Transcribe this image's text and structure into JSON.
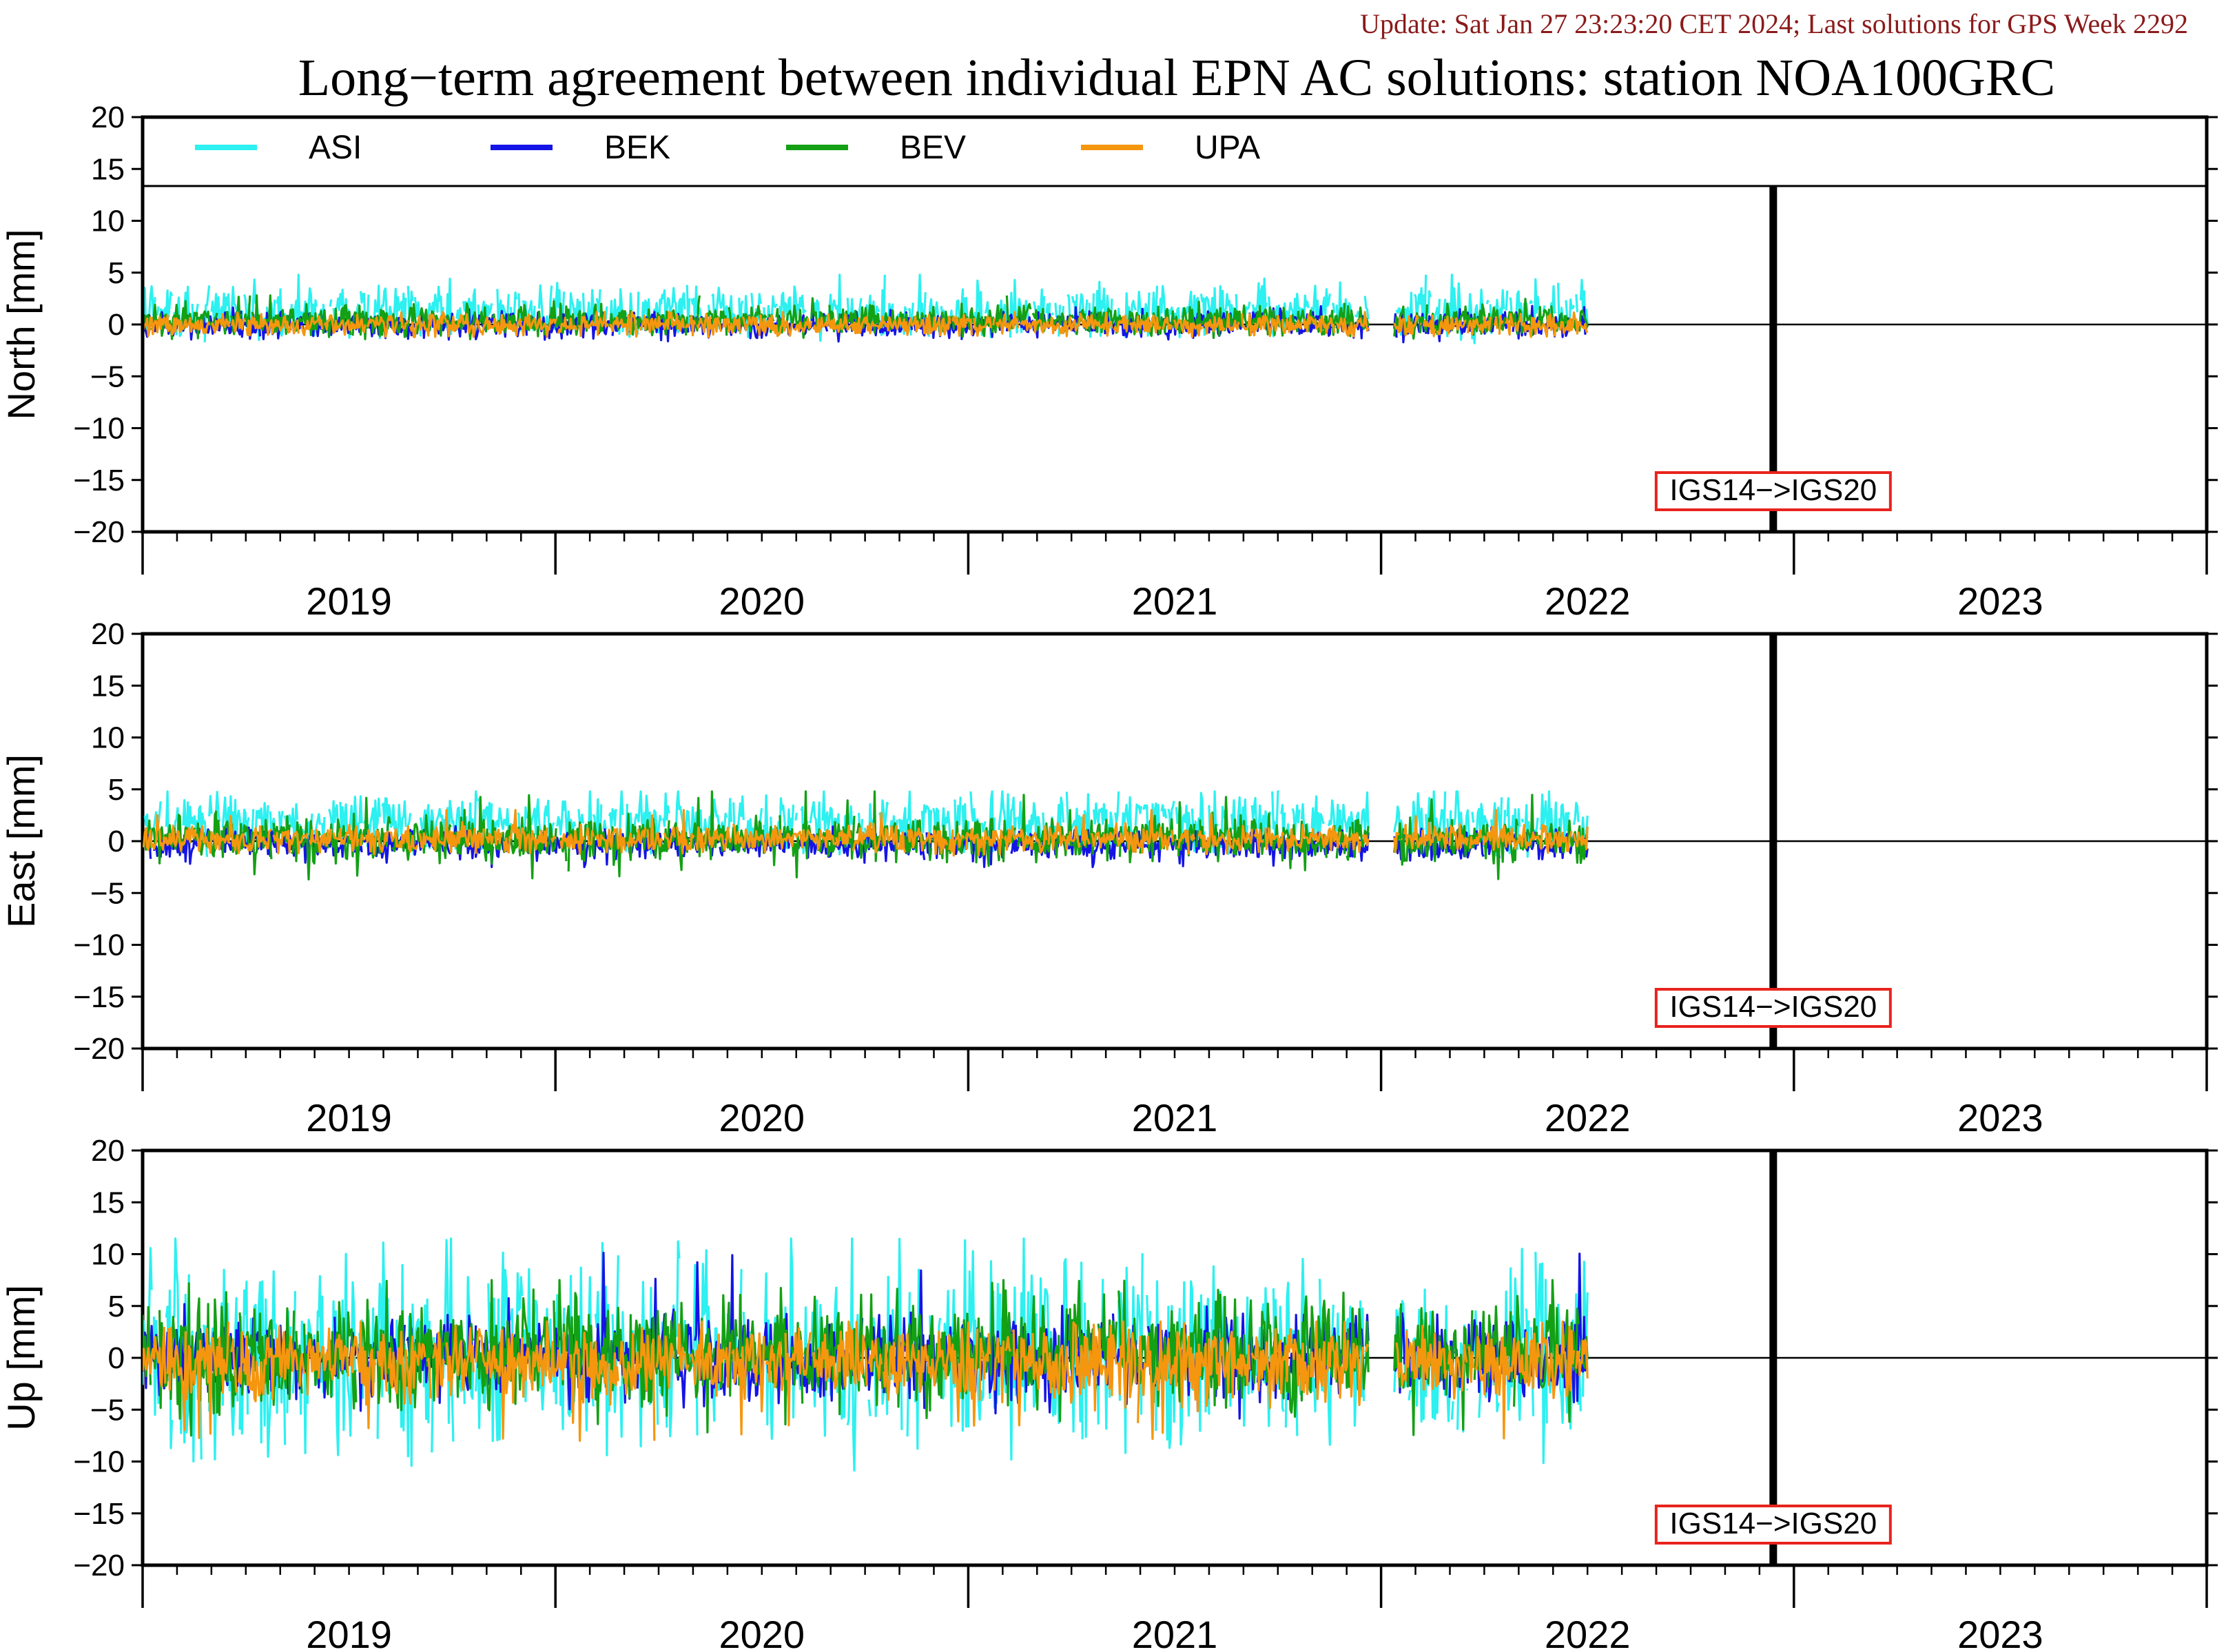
{
  "header": {
    "update_text": "Update: Sat Jan 27 23:23:20 CET 2024; Last solutions for GPS Week 2292",
    "title": "Long−term agreement between individual EPN AC solutions: station NOA100GRC"
  },
  "colors": {
    "update_text": "#8b1a1a",
    "axes": "#000000",
    "marker_box": "#e8231c",
    "ASI": "#2df0f0",
    "BEK": "#1414e6",
    "BEV": "#14a014",
    "UPA": "#f5960f"
  },
  "legend": {
    "placement": "top",
    "items": [
      {
        "name": "ASI",
        "color": "#2df0f0"
      },
      {
        "name": "BEK",
        "color": "#1414e6"
      },
      {
        "name": "BEV",
        "color": "#14a014"
      },
      {
        "name": "UPA",
        "color": "#f5960f"
      }
    ]
  },
  "frame_change": {
    "label": "IGS14−>IGS20",
    "date": 2022.45
  },
  "chart_data": [
    {
      "type": "line",
      "panel": "north",
      "ylabel": "North [mm]",
      "ylim": [
        -20,
        20
      ],
      "xlim": [
        2018.5,
        2023.5
      ],
      "yticks": [
        -20,
        -15,
        -10,
        -5,
        0,
        5,
        10,
        15,
        20
      ],
      "xtick_labels": [
        "2019",
        "2020",
        "2021",
        "2022",
        "2023"
      ],
      "zero_line": true,
      "data_end": 2022.0,
      "data_gap": [
        2021.47,
        2021.53
      ],
      "series": [
        {
          "name": "ASI",
          "mean": 1.3,
          "spread": 1.2,
          "spikes_up": 4.8,
          "spikes_down": -2.8
        },
        {
          "name": "BEK",
          "mean": 0.0,
          "spread": 0.6,
          "spikes_up": 1.8,
          "spikes_down": -1.8
        },
        {
          "name": "BEV",
          "mean": 0.4,
          "spread": 0.7,
          "spikes_up": 2.8,
          "spikes_down": -1.8
        },
        {
          "name": "UPA",
          "mean": 0.0,
          "spread": 0.5,
          "spikes_up": 1.2,
          "spikes_down": -1.2
        }
      ]
    },
    {
      "type": "line",
      "panel": "east",
      "ylabel": "East [mm]",
      "ylim": [
        -20,
        20
      ],
      "xlim": [
        2018.5,
        2023.5
      ],
      "yticks": [
        -20,
        -15,
        -10,
        -5,
        0,
        5,
        10,
        15,
        20
      ],
      "xtick_labels": [
        "2019",
        "2020",
        "2021",
        "2022",
        "2023"
      ],
      "zero_line": true,
      "data_end": 2022.0,
      "data_gap": [
        2021.47,
        2021.53
      ],
      "series": [
        {
          "name": "ASI",
          "mean": 1.8,
          "spread": 1.3,
          "spikes_up": 4.8,
          "spikes_down": -3.0
        },
        {
          "name": "BEK",
          "mean": -0.3,
          "spread": 0.7,
          "spikes_up": 1.5,
          "spikes_down": -2.5
        },
        {
          "name": "BEV",
          "mean": 0.2,
          "spread": 1.0,
          "spikes_up": 4.8,
          "spikes_down": -4.0
        },
        {
          "name": "UPA",
          "mean": 0.2,
          "spread": 0.6,
          "spikes_up": 3.0,
          "spikes_down": -1.5
        }
      ]
    },
    {
      "type": "line",
      "panel": "up",
      "ylabel": "Up [mm]",
      "ylim": [
        -20,
        20
      ],
      "xlim": [
        2018.5,
        2023.5
      ],
      "yticks": [
        -20,
        -15,
        -10,
        -5,
        0,
        5,
        10,
        15,
        20
      ],
      "xtick_labels": [
        "2019",
        "2020",
        "2021",
        "2022",
        "2023"
      ],
      "zero_line": true,
      "data_end": 2022.0,
      "data_gap": [
        2021.47,
        2021.53
      ],
      "series": [
        {
          "name": "ASI",
          "mean": 0.5,
          "spread": 4.0,
          "spikes_up": 11.5,
          "spikes_down": -11.5
        },
        {
          "name": "BEK",
          "mean": 0.0,
          "spread": 2.0,
          "spikes_up": 10.2,
          "spikes_down": -6.0
        },
        {
          "name": "BEV",
          "mean": 0.5,
          "spread": 2.5,
          "spikes_up": 7.5,
          "spikes_down": -8.0
        },
        {
          "name": "UPA",
          "mean": -0.5,
          "spread": 1.8,
          "spikes_up": 3.5,
          "spikes_down": -8.0
        }
      ]
    }
  ]
}
